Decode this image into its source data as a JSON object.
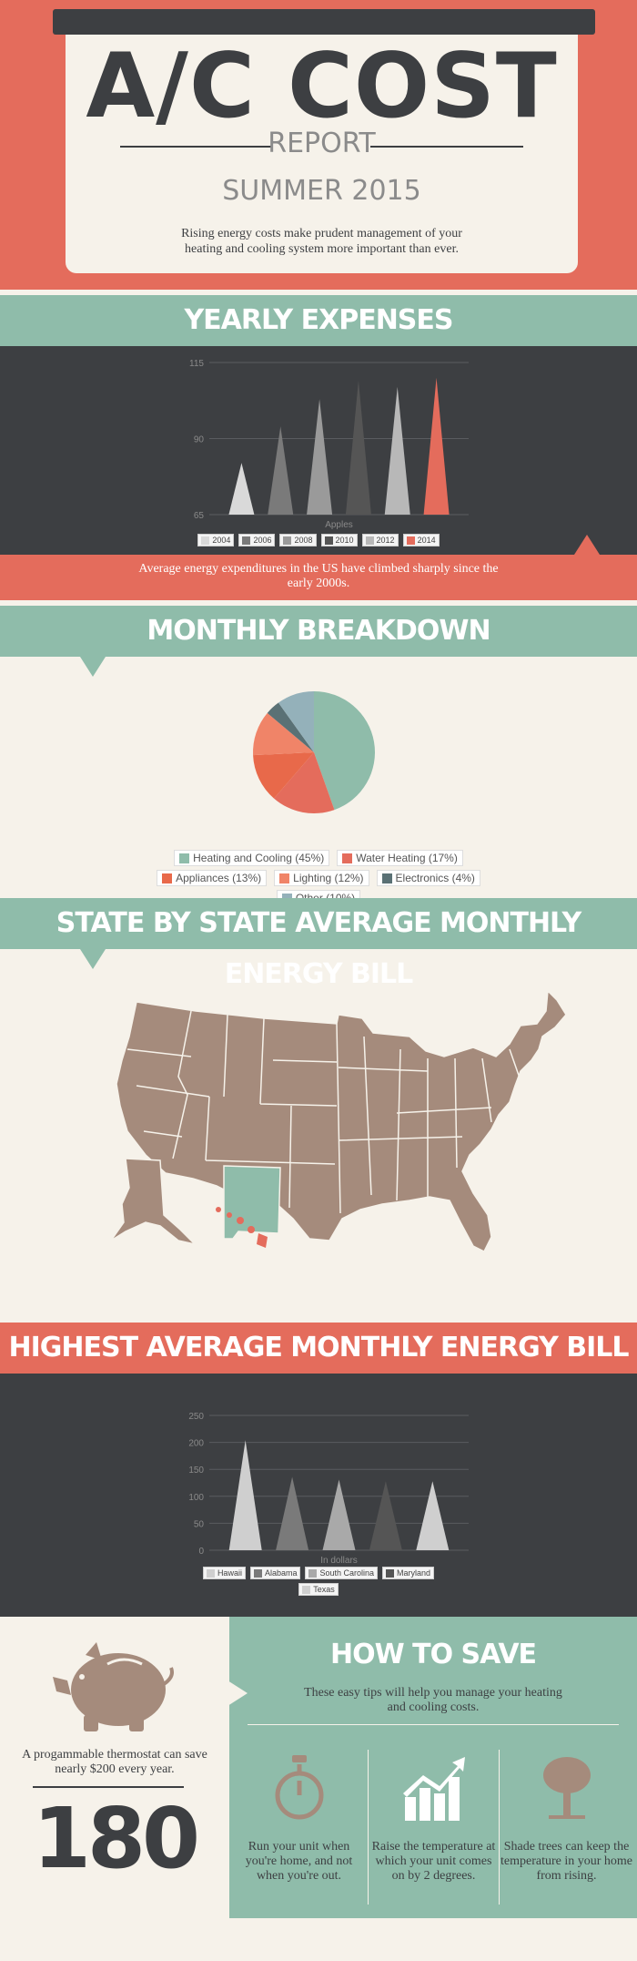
{
  "header": {
    "title": "A/C COST",
    "subtitle": "REPORT",
    "season": "SUMMER 2015",
    "description": "Rising energy costs make prudent management of your heating and cooling system more important than ever."
  },
  "yearly": {
    "heading": "YEARLY EXPENSES",
    "caption": "Average energy expenditures in the US have climbed sharply since the early 2000s."
  },
  "monthly": {
    "heading": "MONTHLY BREAKDOWN"
  },
  "map": {
    "heading": "STATE BY STATE AVERAGE MONTHLY ENERGY BILL",
    "highlight_color": "#8fbcaa",
    "state_color": "#a58b7c",
    "hawaii_color": "#e46c5c"
  },
  "highest": {
    "heading": "HIGHEST AVERAGE MONTHLY ENERGY BILL"
  },
  "thermostat": {
    "text": "A progammable thermostat can save nearly $200 every year.",
    "number": "180",
    "icon": "piggy-bank-icon"
  },
  "tips": {
    "heading": "HOW TO SAVE",
    "intro": "These easy tips will help you manage your heating and cooling costs.",
    "items": [
      {
        "icon": "stopwatch-icon",
        "text": "Run your unit when you're home, and not when you're out."
      },
      {
        "icon": "rising-chart-icon",
        "text": "Raise the temperature at which your unit comes on by 2 degrees."
      },
      {
        "icon": "tree-icon",
        "text": "Shade trees can keep the temperature in your home from rising."
      }
    ]
  },
  "chart_data": [
    {
      "type": "bar",
      "title": "",
      "xlabel": "Apples",
      "ylabel": "",
      "ylim": [
        65,
        115
      ],
      "yticks": [
        "65",
        "90",
        "115"
      ],
      "grid": true,
      "legend": "bottom",
      "categories": [
        "Apples"
      ],
      "series": [
        {
          "name": "2004",
          "values": [
            82
          ],
          "color": "#d9d9d9"
        },
        {
          "name": "2006",
          "values": [
            94
          ],
          "color": "#7a7a7a"
        },
        {
          "name": "2008",
          "values": [
            103
          ],
          "color": "#9a9a9a"
        },
        {
          "name": "2010",
          "values": [
            109
          ],
          "color": "#555555"
        },
        {
          "name": "2012",
          "values": [
            107
          ],
          "color": "#b8b8b8"
        },
        {
          "name": "2014",
          "values": [
            110
          ],
          "color": "#e46c5c"
        }
      ]
    },
    {
      "type": "pie",
      "title": "",
      "legend": "bottom",
      "slices": [
        {
          "name": "Heating and Cooling (45%)",
          "value": 45,
          "color": "#8fbcaa"
        },
        {
          "name": "Water Heating (17%)",
          "value": 17,
          "color": "#e46c5c"
        },
        {
          "name": "Appliances (13%)",
          "value": 13,
          "color": "#e8694a"
        },
        {
          "name": "Lighting (12%)",
          "value": 12,
          "color": "#f08468"
        },
        {
          "name": "Electronics (4%)",
          "value": 4,
          "color": "#5a7175"
        },
        {
          "name": "Other (10%)",
          "value": 10,
          "color": "#94b1ba"
        }
      ]
    },
    {
      "type": "bar",
      "title": "",
      "xlabel": "In dollars",
      "ylabel": "",
      "ylim": [
        0,
        250
      ],
      "yticks": [
        "0",
        "50",
        "100",
        "150",
        "200",
        "250"
      ],
      "grid": true,
      "legend": "bottom",
      "categories": [
        "In dollars"
      ],
      "series": [
        {
          "name": "Hawaii",
          "values": [
            204
          ],
          "color": "#cfcfcf"
        },
        {
          "name": "Alabama",
          "values": [
            136
          ],
          "color": "#7a7a7a"
        },
        {
          "name": "South Carolina",
          "values": [
            131
          ],
          "color": "#a9a9a9"
        },
        {
          "name": "Maryland",
          "values": [
            128
          ],
          "color": "#555555"
        },
        {
          "name": "Texas",
          "values": [
            128
          ],
          "color": "#cfcfcf"
        }
      ]
    }
  ]
}
